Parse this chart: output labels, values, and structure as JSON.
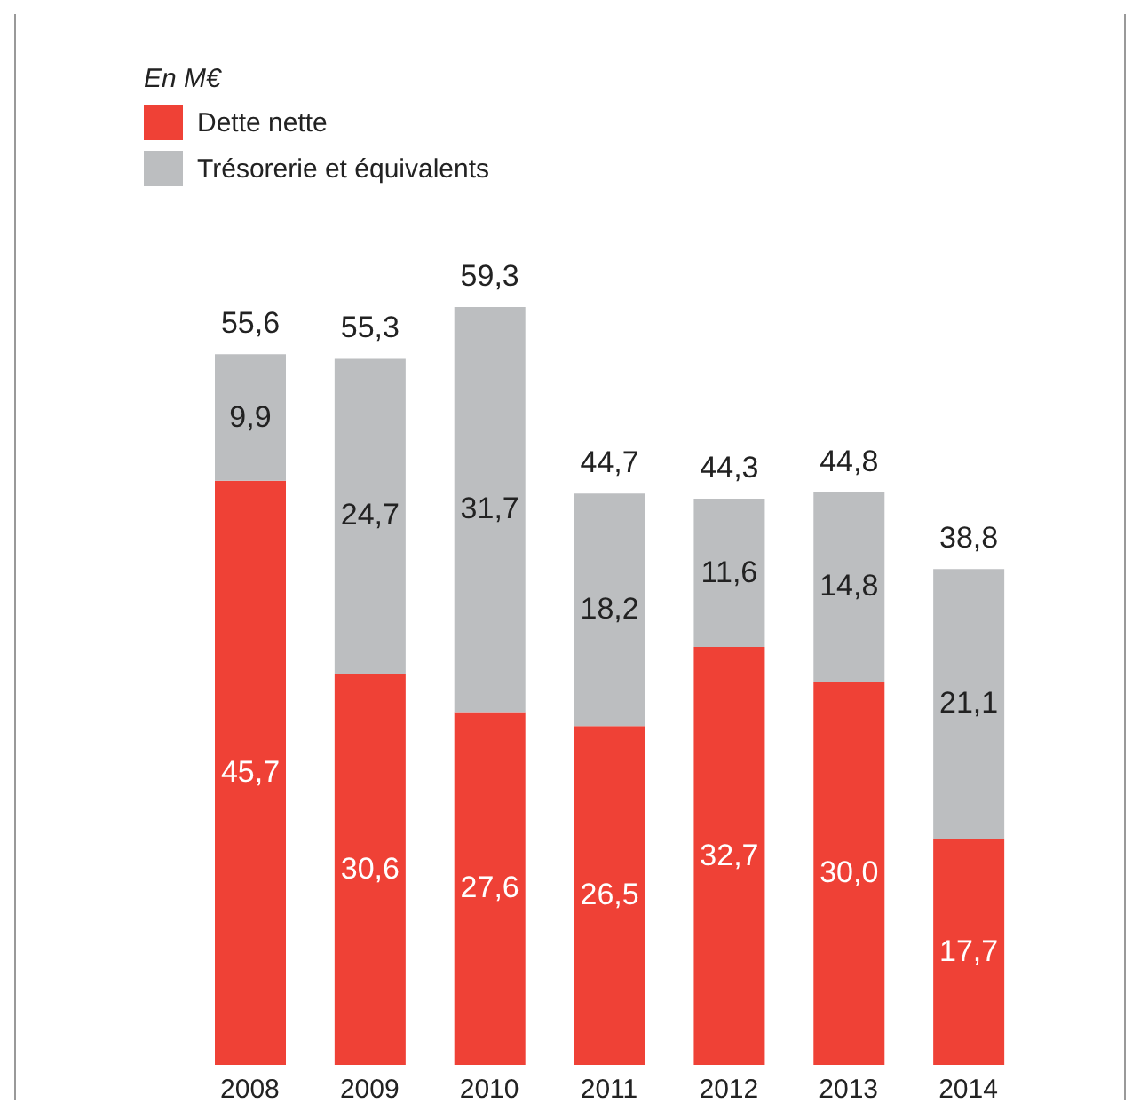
{
  "chart_data": {
    "type": "bar",
    "stacked": true,
    "legend_title": "En M€",
    "legend": "top left",
    "categories": [
      "2008",
      "2009",
      "2010",
      "2011",
      "2012",
      "2013",
      "2014"
    ],
    "series": [
      {
        "name": "Dette nette",
        "color": "#ef4136",
        "values": [
          45.7,
          30.6,
          27.6,
          26.5,
          32.7,
          30.0,
          17.7
        ],
        "value_labels": [
          "45,7",
          "30,6",
          "27,6",
          "26,5",
          "32,7",
          "30,0",
          "17,7"
        ]
      },
      {
        "name": "Trésorerie et équivalents",
        "color": "#bcbec0",
        "values": [
          9.9,
          24.7,
          31.7,
          18.2,
          11.6,
          14.8,
          21.1
        ],
        "value_labels": [
          "9,9",
          "24,7",
          "31,7",
          "18,2",
          "11,6",
          "14,8",
          "21,1"
        ]
      }
    ],
    "totals": [
      "55,6",
      "55,3",
      "59,3",
      "44,7",
      "44,3",
      "44,8",
      "38,8"
    ]
  }
}
